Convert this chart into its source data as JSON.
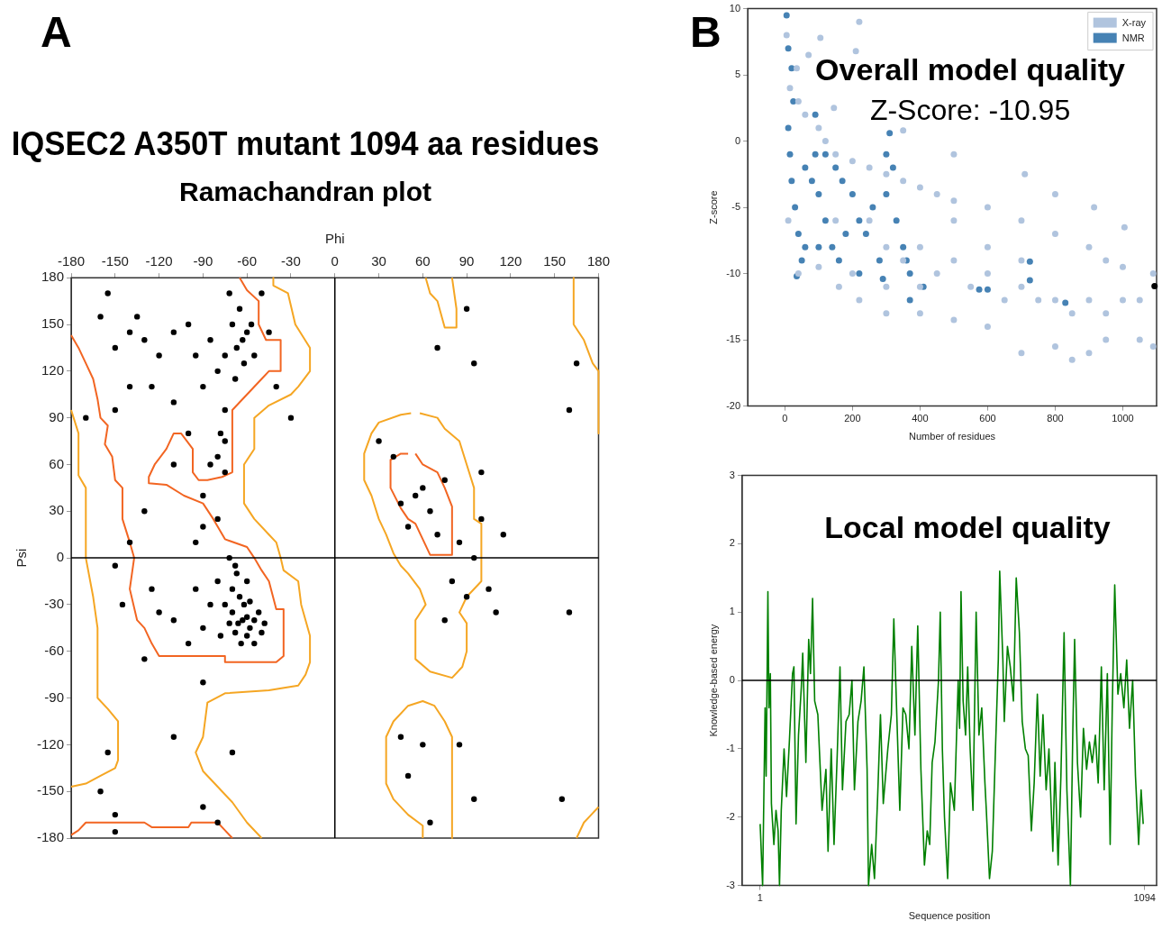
{
  "chart_data": [
    {
      "type": "scatter",
      "title": "IQSEC2 A350T mutant 1094 aa residues",
      "subtitle": "Ramachandran plot",
      "xlabel": "Phi",
      "ylabel": "Psi",
      "annotations": [
        "A"
      ],
      "xlim": [
        -180,
        180
      ],
      "xticks": [
        -180,
        -150,
        -120,
        -90,
        -60,
        -30,
        0,
        30,
        60,
        90,
        120,
        150,
        180
      ],
      "ylim": [
        -180,
        180
      ],
      "yticks": [
        -180,
        -150,
        -120,
        -90,
        -60,
        -30,
        0,
        30,
        60,
        90,
        120,
        150,
        180
      ],
      "grid": false,
      "marker": "circle",
      "ref_lines": [
        {
          "axis": "x",
          "value": 0,
          "color": "#000000"
        },
        {
          "axis": "y",
          "value": 0,
          "color": "#000000"
        }
      ],
      "series": [
        {
          "color": "#000000",
          "x": [
            -63,
            -60,
            -66,
            -58,
            -70,
            -62,
            -55,
            -68,
            -72,
            -60,
            -65,
            -75,
            -52,
            -58,
            -70,
            -67,
            -72,
            -80,
            -85,
            -90,
            -50,
            -64,
            -78,
            -95,
            -100,
            -110,
            -120,
            -125,
            -60,
            -68,
            -55,
            -48,
            -63,
            -60,
            -67,
            -57,
            -70,
            -62,
            -75,
            -55,
            -65,
            -72,
            -68,
            -80,
            -85,
            -90,
            -95,
            -100,
            -110,
            -120,
            -130,
            -135,
            -140,
            -150,
            -155,
            -160,
            -140,
            -125,
            -110,
            -150,
            -170,
            -75,
            -78,
            -80,
            -85,
            -75,
            -90,
            -100,
            -110,
            -75,
            -50,
            -45,
            -30,
            -40,
            -90,
            -95,
            -80,
            -130,
            -140,
            -150,
            -145,
            -130,
            -90,
            -110,
            -70,
            -155,
            -160,
            -150,
            -90,
            -80,
            -150,
            55,
            60,
            45,
            65,
            70,
            50,
            75,
            40,
            30,
            85,
            95,
            80,
            90,
            105,
            110,
            75,
            60,
            45,
            85,
            50,
            65,
            95,
            70,
            95,
            90,
            165,
            160,
            160,
            155,
            115,
            100,
            100
          ],
          "values": [
            -40,
            -38,
            -42,
            -45,
            -35,
            -30,
            -40,
            -48,
            -42,
            -50,
            -25,
            -30,
            -35,
            -28,
            -20,
            -10,
            0,
            -15,
            -30,
            -45,
            -48,
            -55,
            -50,
            -20,
            -55,
            -40,
            -35,
            -20,
            -15,
            -5,
            -55,
            -42,
            140,
            145,
            135,
            150,
            150,
            125,
            130,
            130,
            160,
            170,
            115,
            120,
            140,
            110,
            130,
            150,
            145,
            130,
            140,
            155,
            145,
            135,
            170,
            155,
            110,
            110,
            100,
            95,
            90,
            95,
            80,
            65,
            60,
            55,
            40,
            80,
            60,
            75,
            170,
            145,
            90,
            110,
            20,
            10,
            25,
            30,
            10,
            -5,
            -30,
            -65,
            -80,
            -115,
            -125,
            -125,
            -150,
            -165,
            -160,
            -170,
            -176,
            40,
            45,
            35,
            30,
            15,
            20,
            50,
            65,
            75,
            10,
            0,
            -15,
            -25,
            -20,
            -35,
            -40,
            -120,
            -115,
            -120,
            -140,
            -170,
            -155,
            135,
            125,
            160,
            125,
            95,
            -35,
            -155,
            15,
            55,
            25
          ]
        },
        {
          "type": "line",
          "color": "#f26522",
          "marker": "none",
          "x": [
            -65,
            -60,
            -52,
            -52,
            -47,
            -37,
            -37,
            -45,
            -50,
            -60,
            -70,
            -70,
            -77,
            -87,
            -93,
            -97,
            -97,
            -105,
            -110,
            -115,
            -123,
            -127,
            -127,
            -115,
            -103,
            -90,
            -83,
            -75,
            -60,
            -55,
            -50,
            -45,
            -40,
            -35,
            -35,
            -40,
            -75,
            -75,
            -120,
            -125,
            -130,
            -135,
            -140,
            -137,
            -140,
            -145,
            -145,
            -150,
            -152,
            -157,
            -155,
            -160,
            -162,
            -165,
            -170,
            -175,
            -180
          ],
          "values": [
            180,
            172,
            165,
            150,
            140,
            140,
            120,
            120,
            115,
            105,
            95,
            55,
            52,
            50,
            50,
            55,
            70,
            80,
            80,
            70,
            60,
            52,
            48,
            47,
            40,
            35,
            25,
            12,
            7,
            0,
            -8,
            -15,
            -33,
            -33,
            -63,
            -67,
            -67,
            -63,
            -63,
            -55,
            -45,
            -40,
            -20,
            0,
            10,
            25,
            45,
            50,
            65,
            73,
            85,
            90,
            102,
            115,
            125,
            135,
            143
          ]
        },
        {
          "type": "line",
          "color": "#f26522",
          "marker": "none",
          "x": [
            -180,
            -175,
            -170,
            -130,
            -125,
            -100,
            -98,
            -80,
            -75,
            -70
          ],
          "values": [
            -178,
            -175,
            -170,
            -170,
            -173,
            -173,
            -170,
            -170,
            -175,
            -180
          ]
        },
        {
          "type": "line",
          "color": "#f26522",
          "marker": "none",
          "x": [
            50,
            45,
            38,
            38,
            45,
            50,
            55,
            60,
            65,
            80,
            80,
            75,
            70,
            60,
            55
          ],
          "values": [
            67,
            67,
            63,
            45,
            32,
            25,
            22,
            12,
            2,
            2,
            33,
            45,
            55,
            60,
            67
          ]
        },
        {
          "type": "line",
          "color": "#f5a623",
          "marker": "none",
          "x": [
            -42,
            -42,
            -32,
            -27,
            -17,
            -17,
            -25,
            -30,
            -45,
            -55,
            -55,
            -62,
            -62,
            -55,
            -45,
            -40,
            -37,
            -35,
            -25,
            -23,
            -17,
            -17,
            -20,
            -25,
            -45,
            -75,
            -87,
            -90,
            -95,
            -90,
            -80,
            -70,
            -60,
            -50
          ],
          "values": [
            180,
            175,
            170,
            150,
            135,
            120,
            110,
            105,
            98,
            90,
            70,
            60,
            35,
            25,
            15,
            10,
            0,
            -8,
            -15,
            -30,
            -50,
            -67,
            -75,
            -82,
            -85,
            -87,
            -93,
            -115,
            -125,
            -137,
            -147,
            -157,
            -170,
            -180
          ]
        },
        {
          "type": "line",
          "color": "#f5a623",
          "marker": "none",
          "x": [
            -180,
            -175,
            -175,
            -170,
            -170,
            -165,
            -162,
            -162,
            -155,
            -148,
            -148,
            -150,
            -160,
            -170,
            -180
          ],
          "values": [
            95,
            80,
            53,
            45,
            0,
            -25,
            -45,
            -90,
            -97,
            -105,
            -130,
            -135,
            -140,
            -145,
            -147
          ]
        },
        {
          "type": "line",
          "color": "#f5a623",
          "marker": "none",
          "x": [
            62,
            65,
            70,
            75,
            83,
            83,
            80
          ],
          "values": [
            180,
            170,
            165,
            148,
            148,
            160,
            180
          ]
        },
        {
          "type": "line",
          "color": "#f5a623",
          "marker": "none",
          "x": [
            163,
            163,
            170,
            176,
            180,
            180
          ],
          "values": [
            180,
            150,
            140,
            125,
            120,
            80
          ]
        },
        {
          "type": "line",
          "color": "#f5a623",
          "marker": "none",
          "x": [
            52,
            45,
            30,
            25,
            20,
            20,
            25,
            30,
            35,
            40,
            45,
            50,
            58,
            62,
            55,
            55,
            65,
            80,
            87,
            90,
            90,
            85,
            90,
            100,
            100,
            95,
            95,
            90,
            85,
            75,
            70,
            58
          ],
          "values": [
            93,
            92,
            87,
            80,
            67,
            50,
            40,
            25,
            15,
            3,
            -5,
            -10,
            -20,
            -30,
            -40,
            -65,
            -73,
            -77,
            -70,
            -60,
            -42,
            -35,
            -25,
            -15,
            22,
            25,
            45,
            60,
            75,
            83,
            90,
            93
          ]
        },
        {
          "type": "line",
          "color": "#f5a623",
          "marker": "none",
          "x": [
            60,
            60,
            50,
            40,
            35,
            35,
            40,
            50,
            60,
            68,
            75,
            80,
            80
          ],
          "values": [
            -180,
            -172,
            -165,
            -155,
            -145,
            -115,
            -105,
            -95,
            -92,
            -95,
            -105,
            -115,
            -180
          ]
        },
        {
          "type": "line",
          "color": "#f5a623",
          "marker": "none",
          "x": [
            165,
            170,
            175,
            180
          ],
          "values": [
            -180,
            -170,
            -165,
            -160
          ]
        }
      ]
    },
    {
      "type": "scatter",
      "title": "Overall model quality",
      "subtitle": "Z-Score: -10.95",
      "xlabel": "Number of residues",
      "ylabel": "Z-score",
      "annotations": [
        "B"
      ],
      "xlim": [
        -110,
        1100
      ],
      "xticks": [
        0,
        200,
        400,
        600,
        800,
        1000
      ],
      "ylim": [
        -20,
        10
      ],
      "yticks": [
        -20,
        -15,
        -10,
        -5,
        0,
        5,
        10
      ],
      "grid": false,
      "legend": "top right",
      "series": [
        {
          "name": "X-ray",
          "color": "#b0c4de",
          "x": [
            5,
            15,
            40,
            60,
            100,
            120,
            150,
            200,
            250,
            300,
            350,
            400,
            450,
            500,
            600,
            700,
            800,
            900,
            950,
            1000,
            1090,
            220,
            105,
            210,
            70,
            35,
            145,
            350,
            500,
            710,
            800,
            915,
            1005,
            10,
            40,
            100,
            160,
            220,
            300,
            400,
            500,
            600,
            700,
            800,
            850,
            900,
            950,
            1050,
            1090,
            150,
            250,
            300,
            350,
            400,
            450,
            500,
            550,
            600,
            650,
            700,
            750,
            800,
            850,
            900,
            950,
            1000,
            1050,
            500,
            600,
            700,
            400,
            300,
            200
          ],
          "values": [
            8,
            4,
            3,
            2,
            1,
            0,
            -1,
            -1.5,
            -2,
            -2.5,
            -3,
            -3.5,
            -4,
            -4.5,
            -5,
            -6,
            -7,
            -8,
            -9,
            -9.5,
            -10,
            9,
            7.8,
            6.8,
            6.5,
            5.5,
            2.5,
            0.8,
            -1,
            -2.5,
            -4,
            -5,
            -6.5,
            -6,
            -10,
            -9.5,
            -11,
            -12,
            -13,
            -13,
            -13.5,
            -14,
            -16,
            -15.5,
            -16.5,
            -16,
            -15,
            -15,
            -15.5,
            -6,
            -6,
            -8,
            -9,
            -8,
            -10,
            -9,
            -11,
            -10,
            -12,
            -11,
            -12,
            -12,
            -13,
            -12,
            -13,
            -12,
            -12,
            -6,
            -8,
            -9,
            -11,
            -11,
            -10
          ]
        },
        {
          "name": "NMR",
          "color": "#4682b4",
          "x": [
            5,
            10,
            20,
            25,
            10,
            15,
            20,
            30,
            40,
            50,
            35,
            60,
            80,
            100,
            120,
            140,
            160,
            90,
            90,
            120,
            150,
            170,
            200,
            220,
            220,
            180,
            100,
            60,
            240,
            260,
            280,
            300,
            300,
            320,
            330,
            350,
            370,
            370,
            360,
            410,
            575,
            600,
            725,
            725,
            830,
            290,
            310
          ],
          "values": [
            9.5,
            7,
            5.5,
            3,
            1,
            -1,
            -3,
            -5,
            -7,
            -9,
            -10.2,
            -2,
            -3,
            -4,
            -6,
            -8,
            -9,
            2,
            -1,
            -1,
            -2,
            -3,
            -4,
            -6,
            -10,
            -7,
            -8,
            -8,
            -7,
            -5,
            -9,
            -1,
            -4,
            -2,
            -6,
            -8,
            -10,
            -12,
            -9,
            -11,
            -11.2,
            -11.2,
            -9.1,
            -10.5,
            -12.2,
            -10.4,
            0.6
          ]
        },
        {
          "color": "#000000",
          "x": [
            1094
          ],
          "values": [
            -10.95
          ]
        }
      ]
    },
    {
      "type": "line",
      "title": "Local model quality",
      "xlabel": "Sequence position",
      "ylabel": "Knowledge-based energy",
      "xlim": [
        -50,
        1128
      ],
      "xticks": [
        1,
        1094
      ],
      "ylim": [
        -3,
        3
      ],
      "yticks": [
        -3,
        -2,
        -1,
        0,
        1,
        2,
        3
      ],
      "grid": false,
      "ref_lines": [
        {
          "axis": "y",
          "value": 0,
          "color": "#000000"
        }
      ],
      "series": [
        {
          "color": "#008000",
          "x": [
            1,
            8,
            15,
            18,
            23,
            26,
            30,
            33,
            40,
            46,
            52,
            56,
            61,
            69,
            76,
            84,
            93,
            97,
            103,
            110,
            118,
            122,
            131,
            139,
            144,
            150,
            156,
            165,
            171,
            177,
            188,
            194,
            203,
            211,
            220,
            228,
            235,
            245,
            254,
            262,
            269,
            279,
            288,
            296,
            305,
            309,
            318,
            326,
            335,
            343,
            351,
            364,
            374,
            381,
            390,
            398,
            407,
            415,
            424,
            432,
            441,
            449,
            458,
            468,
            476,
            483,
            490,
            498,
            508,
            513,
            519,
            525,
            534,
            542,
            553,
            564,
            568,
            572,
            578,
            585,
            591,
            598,
            606,
            615,
            623,
            631,
            640,
            644,
            653,
            661,
            670,
            678,
            682,
            691,
            695,
            704,
            712,
            721,
            729,
            738,
            746,
            755,
            763,
            772,
            780,
            789,
            797,
            805,
            814,
            822,
            833,
            839,
            848,
            856,
            865,
            873,
            883,
            890,
            895,
            903,
            912,
            920,
            929,
            937,
            945,
            954,
            962,
            971,
            979,
            988,
            996,
            1002,
            1009,
            1018,
            1026,
            1035,
            1043,
            1051,
            1060,
            1068,
            1077,
            1084,
            1090
          ],
          "values": [
            -2.1,
            -3,
            -0.4,
            -1.4,
            1.3,
            -0.4,
            0.1,
            -1.8,
            -2.4,
            -1.9,
            -2.2,
            -3,
            -1.9,
            -1.0,
            -1.7,
            -0.9,
            0.1,
            0.2,
            -2.1,
            -0.8,
            -0.1,
            0.4,
            -1.2,
            0.6,
            0.1,
            1.2,
            -0.3,
            -0.5,
            -1.2,
            -1.9,
            -1.3,
            -2.5,
            -1.0,
            -2.4,
            -1.1,
            0.2,
            -1.6,
            -0.6,
            -0.5,
            0.0,
            -1.6,
            -0.6,
            -0.3,
            0.2,
            -1.3,
            -3,
            -2.4,
            -2.9,
            -1.7,
            -0.5,
            -1.8,
            -1.0,
            -0.5,
            0.9,
            -0.6,
            -1.9,
            -0.4,
            -0.5,
            -1.0,
            0.5,
            -0.8,
            0.8,
            -1.3,
            -2.7,
            -2.2,
            -2.4,
            -1.2,
            -0.9,
            0.0,
            1.0,
            -1.0,
            -2.0,
            -2.9,
            -1.5,
            -1.9,
            0.0,
            -0.7,
            1.3,
            -0.3,
            -0.8,
            0.2,
            -1.0,
            -1.9,
            1.0,
            -0.8,
            -0.4,
            -1.5,
            -1.9,
            -2.9,
            -2.5,
            -1.0,
            0.3,
            1.6,
            0.3,
            -0.6,
            0.5,
            0.2,
            -0.3,
            1.5,
            0.7,
            -0.6,
            -1.0,
            -1.1,
            -2.2,
            -1.5,
            -0.2,
            -1.4,
            -0.5,
            -1.6,
            -1.0,
            -2.5,
            -1.2,
            -2.7,
            -1.4,
            0.7,
            -1.6,
            -3,
            -0.7,
            0.6,
            -1.2,
            -2.0,
            -0.7,
            -1.3,
            -0.9,
            -1.2,
            -0.8,
            -1.5,
            0.2,
            -1.6,
            0.1,
            -2.4,
            -0.4,
            1.4,
            -0.2,
            0.1,
            -0.4,
            0.3,
            -0.7,
            0.0,
            -1.4,
            -2.4,
            -1.6,
            -2.1
          ]
        }
      ]
    }
  ]
}
